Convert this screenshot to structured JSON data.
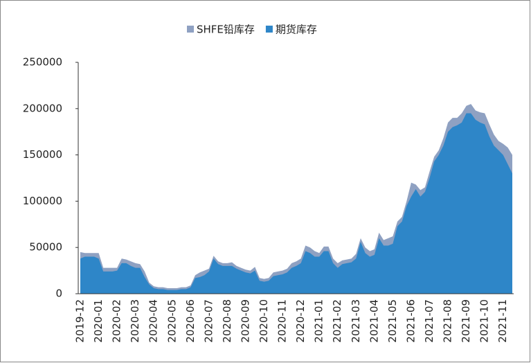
{
  "chart_data": {
    "type": "area",
    "series": [
      {
        "name": "SHFE铅库存",
        "color": "#8fa1c2",
        "values": [
          45000,
          44000,
          44000,
          44000,
          44000,
          28000,
          28000,
          28000,
          28000,
          38000,
          37000,
          35000,
          33000,
          32000,
          24000,
          12000,
          8000,
          7000,
          7000,
          6000,
          6000,
          6000,
          7000,
          7000,
          9000,
          20000,
          23000,
          25000,
          27000,
          41000,
          35000,
          33000,
          33000,
          34000,
          30000,
          28000,
          26000,
          25000,
          29000,
          17000,
          16000,
          17000,
          23000,
          24000,
          25000,
          27000,
          33000,
          35000,
          38000,
          52000,
          50000,
          46000,
          44000,
          51000,
          51000,
          38000,
          33000,
          36000,
          37000,
          38000,
          43000,
          60000,
          50000,
          46000,
          48000,
          66000,
          58000,
          60000,
          62000,
          78000,
          83000,
          100000,
          120000,
          118000,
          112000,
          115000,
          132000,
          148000,
          155000,
          168000,
          185000,
          190000,
          190000,
          195000,
          203000,
          205000,
          198000,
          196000,
          195000,
          183000,
          172000,
          165000,
          162000,
          158000,
          150000
        ]
      },
      {
        "name": "期货库存",
        "color": "#2e86c8",
        "values": [
          38000,
          40000,
          40000,
          40000,
          38000,
          24000,
          24000,
          24000,
          25000,
          33000,
          33000,
          30000,
          28000,
          28000,
          18000,
          10000,
          6000,
          5000,
          5000,
          4000,
          4000,
          4000,
          5000,
          5000,
          7000,
          17000,
          18000,
          20000,
          24000,
          38000,
          32000,
          30000,
          30000,
          30000,
          27000,
          25000,
          23000,
          22000,
          25000,
          14000,
          13000,
          14000,
          19000,
          20000,
          21000,
          23000,
          28000,
          30000,
          33000,
          46000,
          44000,
          40000,
          40000,
          46000,
          46000,
          33000,
          28000,
          32000,
          33000,
          34000,
          38000,
          56000,
          44000,
          40000,
          42000,
          60000,
          52000,
          52000,
          54000,
          73000,
          78000,
          95000,
          105000,
          113000,
          105000,
          110000,
          125000,
          143000,
          150000,
          160000,
          175000,
          180000,
          182000,
          185000,
          195000,
          195000,
          188000,
          185000,
          183000,
          170000,
          160000,
          155000,
          150000,
          140000,
          130000
        ]
      }
    ],
    "categories": [
      "2019-12",
      null,
      null,
      null,
      "2020-01",
      null,
      null,
      null,
      "2020-02",
      null,
      null,
      null,
      "2020-03",
      null,
      null,
      null,
      "2020-04",
      null,
      null,
      null,
      "2020-05",
      null,
      null,
      null,
      "2020-06",
      null,
      null,
      null,
      "2020-07",
      null,
      null,
      null,
      "2020-08",
      null,
      null,
      null,
      "2020-09",
      null,
      null,
      null,
      "2020-10",
      null,
      null,
      null,
      "2020-11",
      null,
      null,
      null,
      "2020-12",
      null,
      null,
      null,
      "2021-01",
      null,
      null,
      null,
      "2021-02",
      null,
      null,
      null,
      "2021-03",
      null,
      null,
      null,
      "2021-04",
      null,
      null,
      null,
      "2021-05",
      null,
      null,
      null,
      "2021-06",
      null,
      null,
      null,
      "2021-07",
      null,
      null,
      null,
      "2021-08",
      null,
      null,
      null,
      "2021-09",
      null,
      null,
      null,
      "2021-10",
      null,
      null,
      null,
      "2021-11",
      null,
      null
    ],
    "ylim": [
      0,
      250000
    ],
    "yticks": [
      0,
      50000,
      100000,
      150000,
      200000,
      250000
    ],
    "legend": "top"
  }
}
